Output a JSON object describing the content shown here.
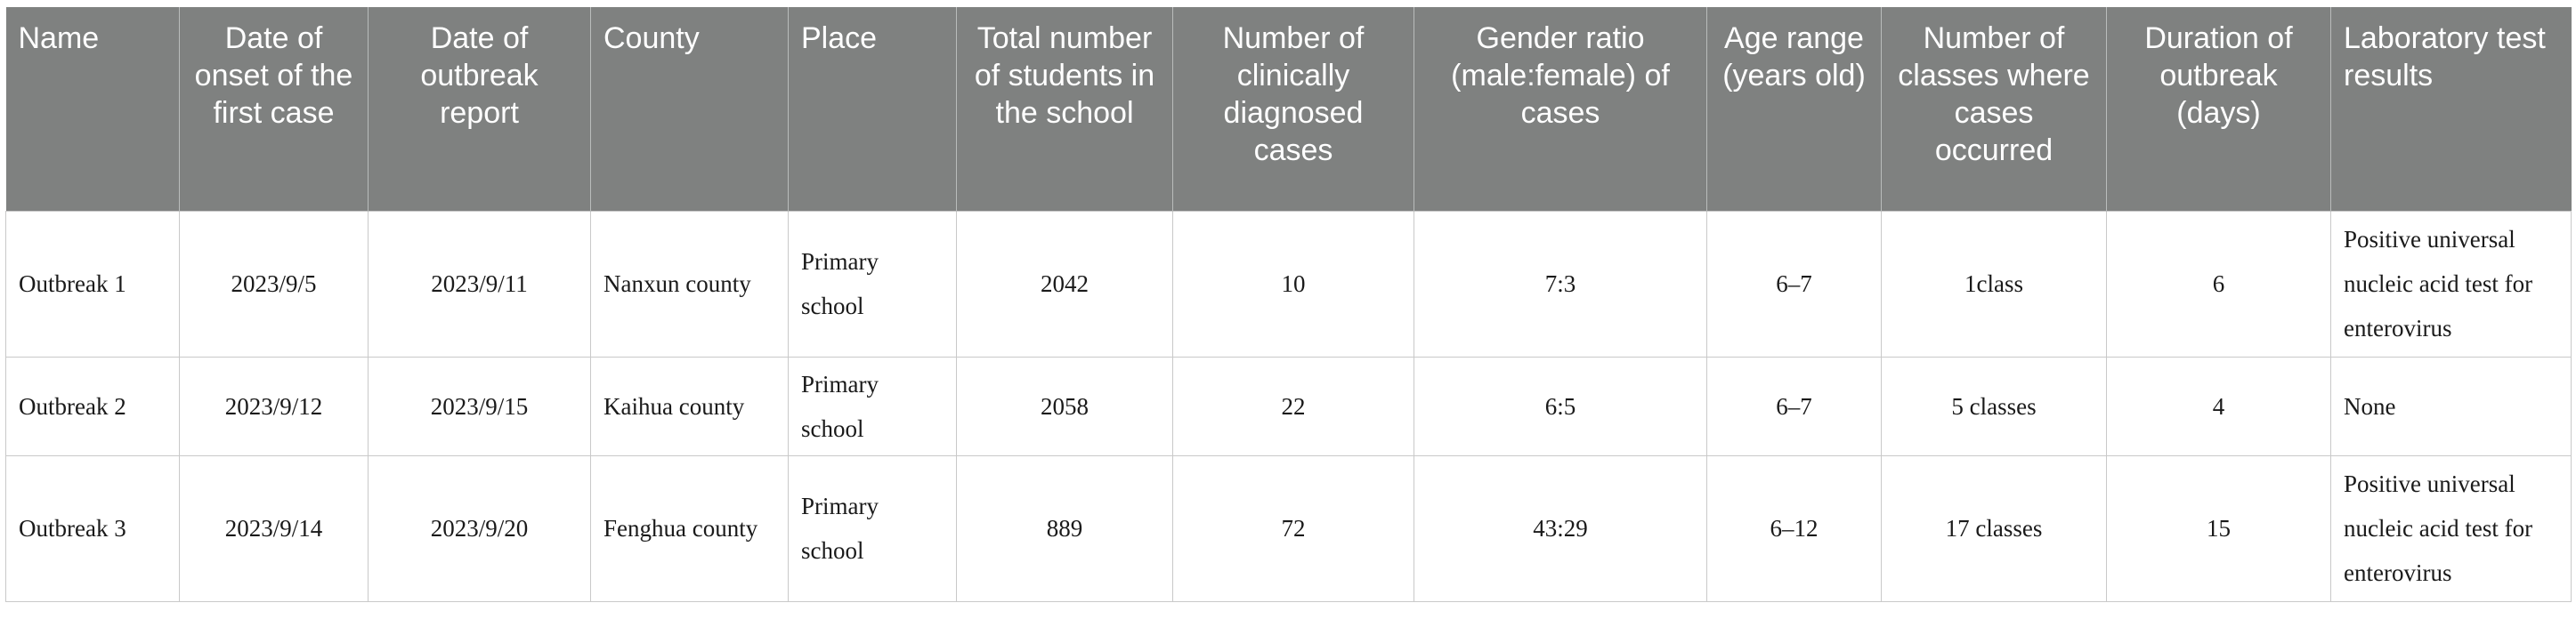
{
  "table": {
    "headers": [
      "Name",
      "Date of onset of the first case",
      "Date of outbreak report",
      "County",
      "Place",
      "Total number of students in the school",
      "Number of clinically diagnosed cases",
      "Gender ratio (male:female) of cases",
      "Age range (years old)",
      "Number of classes where cases occurred",
      "Duration of outbreak (days)",
      "Laboratory test results"
    ],
    "rows": [
      [
        "Outbreak 1",
        "2023/9/5",
        "2023/9/11",
        "Nanxun county",
        "Primary school",
        "2042",
        "10",
        "7:3",
        "6–7",
        "1class",
        "6",
        "Positive universal nucleic acid test for enterovirus"
      ],
      [
        "Outbreak 2",
        "2023/9/12",
        "2023/9/15",
        "Kaihua county",
        "Primary school",
        "2058",
        "22",
        "6:5",
        "6–7",
        "5 classes",
        "4",
        "None"
      ],
      [
        "Outbreak 3",
        "2023/9/14",
        "2023/9/20",
        "Fenghua county",
        "Primary school",
        "889",
        "72",
        "43:29",
        "6–12",
        "17 classes",
        "15",
        "Positive universal nucleic acid test for enterovirus"
      ]
    ]
  }
}
